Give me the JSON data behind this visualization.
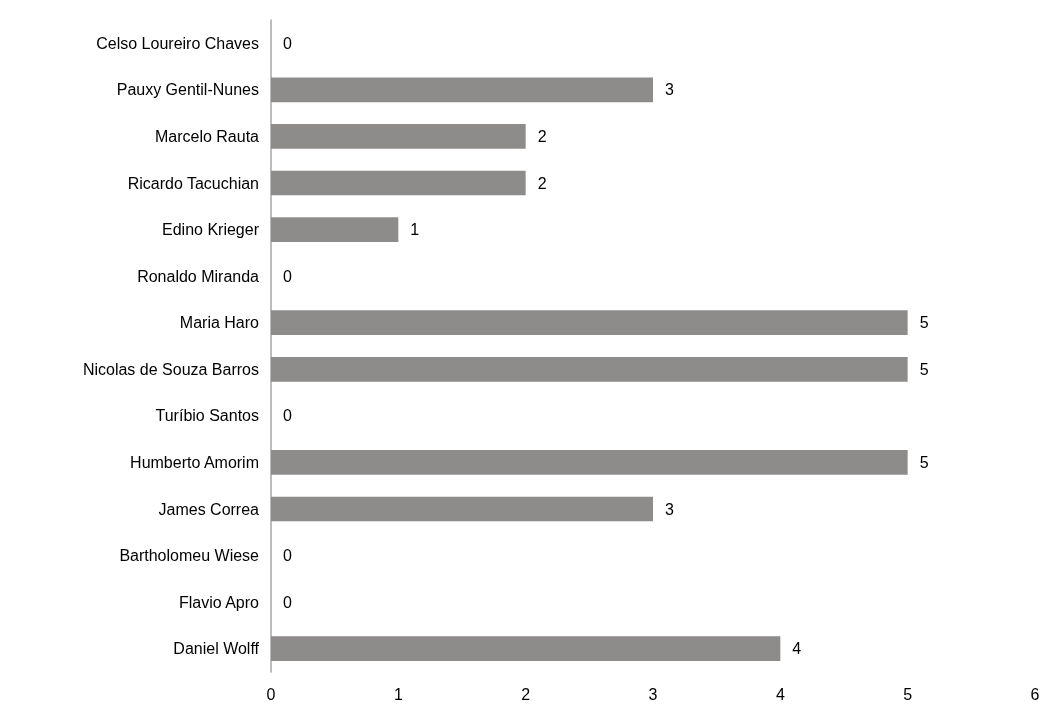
{
  "chart_data": {
    "type": "bar",
    "orientation": "horizontal",
    "categories": [
      "Celso Loureiro Chaves",
      "Pauxy Gentil-Nunes",
      "Marcelo Rauta",
      "Ricardo Tacuchian",
      "Edino Krieger",
      "Ronaldo Miranda",
      "Maria Haro",
      "Nicolas de Souza Barros",
      "Turíbio Santos",
      "Humberto Amorim",
      "James Correa",
      "Bartholomeu Wiese",
      "Flavio Apro",
      "Daniel Wolff"
    ],
    "values": [
      0,
      3,
      2,
      2,
      1,
      0,
      5,
      5,
      0,
      5,
      3,
      0,
      0,
      4
    ],
    "color": "#8e8b8b",
    "xlim": [
      0,
      6
    ],
    "xticks": [
      0,
      1,
      2,
      3,
      4,
      5,
      6
    ],
    "grid": false,
    "data_labels": true
  }
}
